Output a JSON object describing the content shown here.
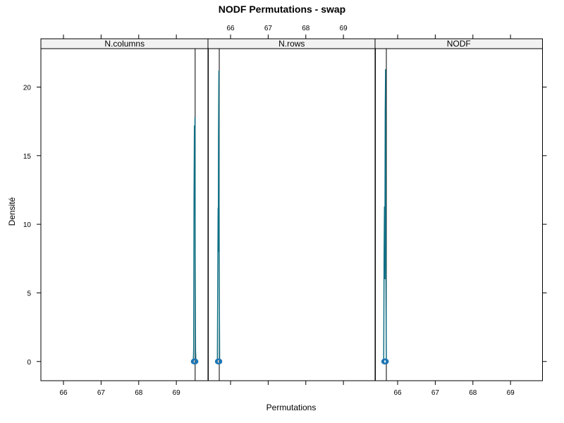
{
  "chart_data": {
    "type": "density",
    "title": "NODF Permutations - swap",
    "xlabel": "Permutations",
    "ylabel": "Densité",
    "xlim": [
      65.4,
      69.85
    ],
    "ylim": [
      -1.4,
      22.8
    ],
    "x_ticks": [
      66,
      67,
      68,
      69
    ],
    "y_ticks": [
      0,
      5,
      10,
      15,
      20
    ],
    "observed_line_color": "#000000",
    "density_color": "#0f6f84",
    "rug_color": "#1f77b4",
    "strip_color": "#f2f2f2",
    "panels": [
      {
        "strip": "N.columns",
        "observed": 69.5,
        "density": [
          {
            "x": 69.45,
            "y": 0
          },
          {
            "x": 69.46,
            "y": 0.8
          },
          {
            "x": 69.47,
            "y": 11.8
          },
          {
            "x": 69.48,
            "y": 17.2
          },
          {
            "x": 69.49,
            "y": 15.0
          },
          {
            "x": 69.495,
            "y": 17.8
          },
          {
            "x": 69.5,
            "y": 7.5
          },
          {
            "x": 69.51,
            "y": 0.8
          },
          {
            "x": 69.52,
            "y": 0
          }
        ],
        "rug": [
          69.46,
          69.47,
          69.475,
          69.48,
          69.485,
          69.49,
          69.495,
          69.5,
          69.505,
          69.51
        ]
      },
      {
        "strip": "N.rows",
        "observed": 65.7,
        "density": [
          {
            "x": 65.65,
            "y": 0
          },
          {
            "x": 65.66,
            "y": 6.0
          },
          {
            "x": 65.67,
            "y": 11.2
          },
          {
            "x": 65.675,
            "y": 8.0
          },
          {
            "x": 65.68,
            "y": 16.2
          },
          {
            "x": 65.69,
            "y": 21.2
          },
          {
            "x": 65.695,
            "y": 12.0
          },
          {
            "x": 65.7,
            "y": 5.8
          },
          {
            "x": 65.71,
            "y": 0
          }
        ],
        "rug": [
          65.66,
          65.665,
          65.67,
          65.675,
          65.68,
          65.685,
          65.69,
          65.695,
          65.7,
          65.705
        ]
      },
      {
        "strip": "NODF",
        "observed": 65.7,
        "density": [
          {
            "x": 65.63,
            "y": 0
          },
          {
            "x": 65.64,
            "y": 7.8
          },
          {
            "x": 65.65,
            "y": 11.3
          },
          {
            "x": 65.66,
            "y": 6.0
          },
          {
            "x": 65.67,
            "y": 18.2
          },
          {
            "x": 65.68,
            "y": 21.3
          },
          {
            "x": 65.69,
            "y": 5.6
          },
          {
            "x": 65.7,
            "y": 0
          }
        ],
        "rug": [
          65.64,
          65.645,
          65.65,
          65.655,
          65.66,
          65.665,
          65.67,
          65.675,
          65.68,
          65.685,
          65.69
        ]
      }
    ]
  }
}
